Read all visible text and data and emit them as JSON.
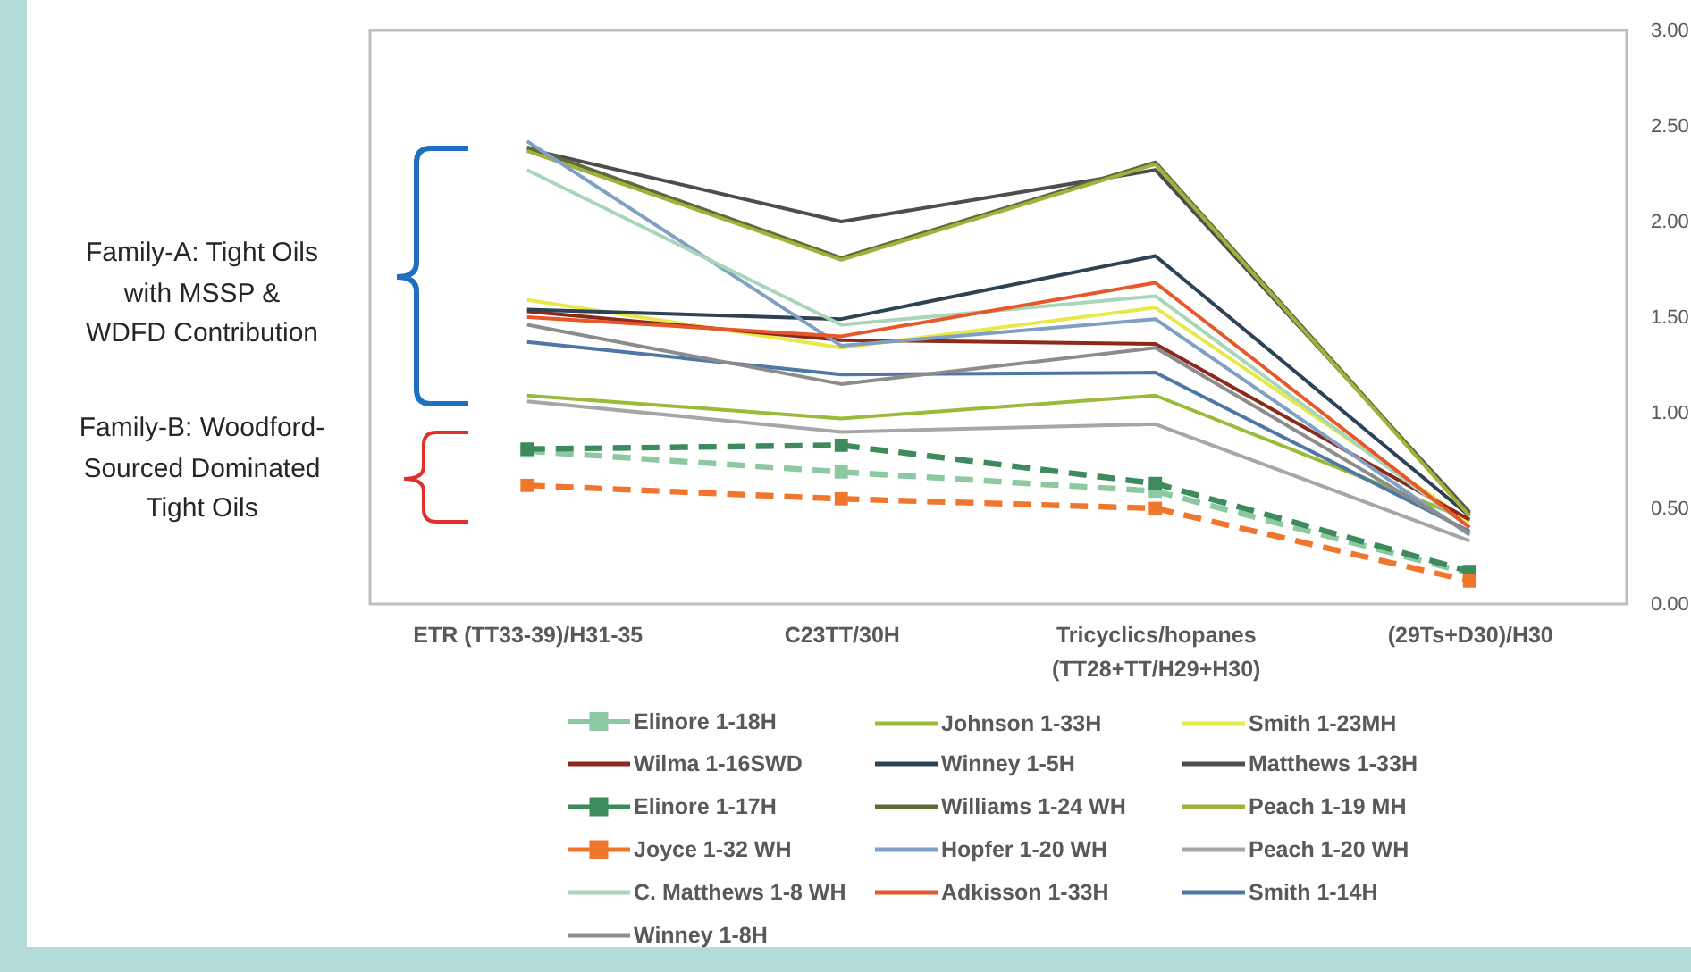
{
  "chart_data": {
    "type": "line",
    "categories": [
      "ETR (TT33-39)/H31-35",
      "C23TT/30H",
      "Tricyclics/hopanes\n(TT28+TT/H29+H30)",
      "(29Ts+D30)/H30"
    ],
    "series": [
      {
        "name": "Elinore 1-18H",
        "color": "#8cc8a0",
        "values": [
          0.8,
          0.69,
          0.59,
          0.16
        ],
        "line_style": "dashed",
        "marker": "square"
      },
      {
        "name": "Johnson 1-33H",
        "color": "#9aba3a",
        "values": [
          1.09,
          0.97,
          1.09,
          0.44
        ]
      },
      {
        "name": "Smith 1-23MH",
        "color": "#e8e84a",
        "values": [
          1.59,
          1.34,
          1.55,
          0.43
        ]
      },
      {
        "name": "Wilma 1-16SWD",
        "color": "#8b2a1a",
        "values": [
          1.53,
          1.38,
          1.36,
          0.44
        ]
      },
      {
        "name": "Winney 1-5H",
        "color": "#2e4255",
        "values": [
          1.54,
          1.49,
          1.82,
          0.46
        ]
      },
      {
        "name": "Matthews 1-33H",
        "color": "#4d4d4d",
        "values": [
          2.38,
          2.0,
          2.27,
          0.48
        ]
      },
      {
        "name": "Elinore 1-17H",
        "color": "#3d8b5c",
        "values": [
          0.81,
          0.83,
          0.63,
          0.17
        ],
        "line_style": "dashed",
        "marker": "square"
      },
      {
        "name": "Williams 1-24 WH",
        "color": "#5c6b38",
        "values": [
          2.39,
          1.81,
          2.31,
          0.47
        ]
      },
      {
        "name": "Peach 1-19 MH",
        "color": "#a4b03c",
        "values": [
          2.37,
          1.8,
          2.3,
          0.46
        ]
      },
      {
        "name": "Joyce 1-32 WH",
        "color": "#f0762e",
        "values": [
          0.62,
          0.55,
          0.5,
          0.12
        ],
        "line_style": "dashed",
        "marker": "square"
      },
      {
        "name": "Hopfer 1-20 WH",
        "color": "#7f9fc4",
        "values": [
          2.42,
          1.35,
          1.49,
          0.36
        ]
      },
      {
        "name": "Peach 1-20 WH",
        "color": "#a6a6a6",
        "values": [
          1.06,
          0.9,
          0.94,
          0.33
        ]
      },
      {
        "name": "C. Matthews 1-8 WH",
        "color": "#a9d5b8",
        "values": [
          2.27,
          1.46,
          1.61,
          0.4
        ]
      },
      {
        "name": "Adkisson 1-33H",
        "color": "#e8572a",
        "values": [
          1.5,
          1.4,
          1.68,
          0.4
        ]
      },
      {
        "name": "Smith 1-14H",
        "color": "#4f77a6",
        "values": [
          1.37,
          1.2,
          1.21,
          0.38
        ]
      },
      {
        "name": "Winney 1-8H",
        "color": "#8c8c8c",
        "values": [
          1.46,
          1.15,
          1.34,
          0.37
        ]
      }
    ],
    "ylim": [
      0,
      3
    ],
    "yticks": [
      {
        "value": 0,
        "label": "0.00"
      },
      {
        "value": 0.5,
        "label": "0.50"
      },
      {
        "value": 1,
        "label": "1.00"
      },
      {
        "value": 1.5,
        "label": "1.50"
      },
      {
        "value": 2,
        "label": "2.00"
      },
      {
        "value": 2.5,
        "label": "2.50"
      },
      {
        "value": 3,
        "label": "3.00"
      }
    ],
    "grid": false,
    "legend": "bottom",
    "marker": "none",
    "line_style": "solid",
    "annotations": [
      "Family-A: Tight Oils\nwith MSSP &\nWDFD Contribution",
      "Family-B: Woodford-\nSourced Dominated\nTight Oils"
    ]
  }
}
